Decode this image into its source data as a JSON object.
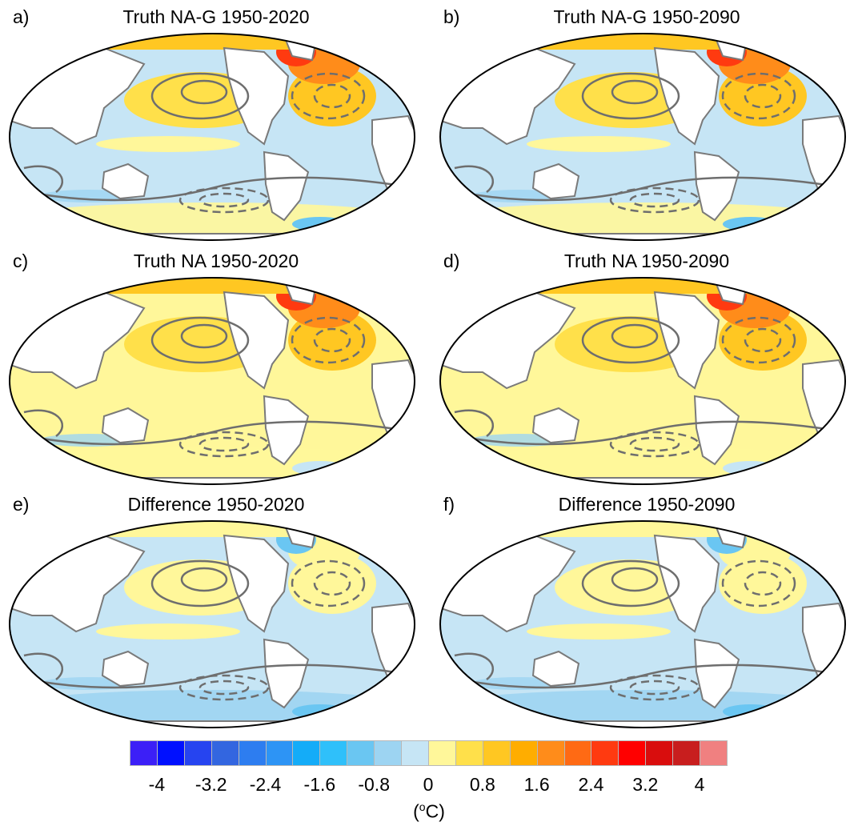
{
  "panels": [
    {
      "letter": "a)",
      "title": "Truth NA-G 1950-2020"
    },
    {
      "letter": "b)",
      "title": "Truth NA-G 1950-2090"
    },
    {
      "letter": "c)",
      "title": "Truth NA 1950-2020"
    },
    {
      "letter": "d)",
      "title": "Truth NA 1950-2090"
    },
    {
      "letter": "e)",
      "title": "Difference 1950-2020"
    },
    {
      "letter": "f)",
      "title": "Difference 1950-2090"
    }
  ],
  "colorbar": {
    "tick_labels": [
      "-4",
      "-3.2",
      "-2.4",
      "-1.6",
      "-0.8",
      "0",
      "0.8",
      "1.6",
      "2.4",
      "3.2",
      "4"
    ],
    "unit_prefix": "(",
    "unit_sup": "o",
    "unit_suffix": "C)",
    "colors": [
      "#3c1ff7",
      "#0010ff",
      "#2644f0",
      "#3366e0",
      "#2d7df0",
      "#2d94f5",
      "#14acf8",
      "#2fc0fa",
      "#6ac6f2",
      "#9dd4f2",
      "#c6e5f5",
      "#fff79a",
      "#ffe04a",
      "#ffc722",
      "#ffad00",
      "#ff8c1a",
      "#ff6a14",
      "#ff3a10",
      "#ff0000",
      "#d90d0d",
      "#c81e1e",
      "#f08080"
    ]
  },
  "chart_data": {
    "type": "heatmap",
    "colorbar_levels": [
      -4,
      -3.6,
      -3.2,
      -2.8,
      -2.4,
      -2.0,
      -1.6,
      -1.2,
      -0.8,
      -0.4,
      0,
      0.4,
      0.8,
      1.2,
      1.6,
      2.0,
      2.4,
      2.8,
      3.2,
      3.6,
      4
    ],
    "units": "°C"
  }
}
